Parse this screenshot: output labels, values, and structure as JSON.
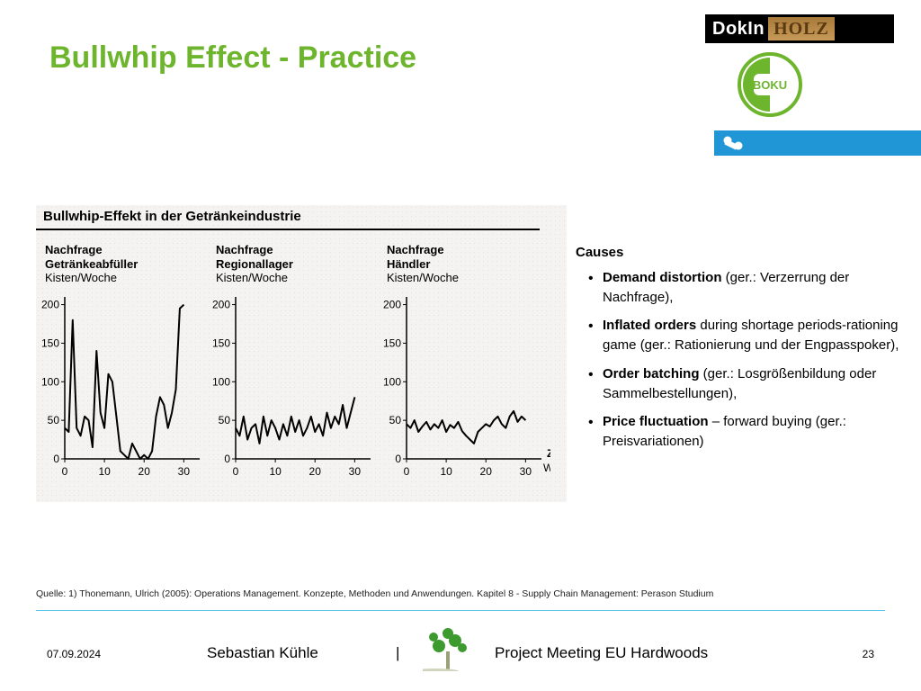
{
  "title": "Bullwhip Effect - Practice",
  "title_color": "#6eb52e",
  "logos": {
    "dokin_left": "DokIn",
    "dokin_right": "HOLZ",
    "boku_text": "BOKU",
    "boku_green": "#6eb52e"
  },
  "chart_panel": {
    "background": "#f4f3f1",
    "heading": "Bullwhip-Effekt in der Getränkeindustrie",
    "panels": [
      {
        "key": "abfueller",
        "title_bold": "Nachfrage\nGetränkeabfüller",
        "ylabel": "Kisten/Woche"
      },
      {
        "key": "regionallager",
        "title_bold": "Nachfrage\nRegionallager",
        "ylabel": "Kisten/Woche"
      },
      {
        "key": "haendler",
        "title_bold": "Nachfrage\nHändler",
        "ylabel": "Kisten/Woche"
      }
    ],
    "yticks": [
      0,
      50,
      100,
      150,
      200
    ],
    "xticks": [
      0,
      10,
      20,
      30
    ],
    "ylim": [
      0,
      210
    ],
    "xlim": [
      0,
      34
    ],
    "x_end_label_top": "Zeit",
    "x_end_label_bottom": "Wochen",
    "line_color": "#000000",
    "line_width": 2,
    "series": {
      "abfueller": [
        [
          0,
          40
        ],
        [
          1,
          35
        ],
        [
          2,
          180
        ],
        [
          3,
          40
        ],
        [
          4,
          30
        ],
        [
          5,
          55
        ],
        [
          6,
          50
        ],
        [
          7,
          15
        ],
        [
          8,
          140
        ],
        [
          9,
          60
        ],
        [
          10,
          40
        ],
        [
          11,
          110
        ],
        [
          12,
          100
        ],
        [
          13,
          55
        ],
        [
          14,
          10
        ],
        [
          15,
          5
        ],
        [
          16,
          0
        ],
        [
          17,
          20
        ],
        [
          18,
          10
        ],
        [
          19,
          0
        ],
        [
          20,
          5
        ],
        [
          21,
          0
        ],
        [
          22,
          10
        ],
        [
          23,
          55
        ],
        [
          24,
          80
        ],
        [
          25,
          70
        ],
        [
          26,
          40
        ],
        [
          27,
          60
        ],
        [
          28,
          90
        ],
        [
          29,
          195
        ],
        [
          30,
          200
        ]
      ],
      "regionallager": [
        [
          0,
          40
        ],
        [
          1,
          30
        ],
        [
          2,
          55
        ],
        [
          3,
          25
        ],
        [
          4,
          40
        ],
        [
          5,
          45
        ],
        [
          6,
          20
        ],
        [
          7,
          55
        ],
        [
          8,
          30
        ],
        [
          9,
          50
        ],
        [
          10,
          40
        ],
        [
          11,
          25
        ],
        [
          12,
          45
        ],
        [
          13,
          30
        ],
        [
          14,
          55
        ],
        [
          15,
          35
        ],
        [
          16,
          50
        ],
        [
          17,
          30
        ],
        [
          18,
          40
        ],
        [
          19,
          55
        ],
        [
          20,
          35
        ],
        [
          21,
          45
        ],
        [
          22,
          30
        ],
        [
          23,
          60
        ],
        [
          24,
          40
        ],
        [
          25,
          55
        ],
        [
          26,
          45
        ],
        [
          27,
          70
        ],
        [
          28,
          40
        ],
        [
          29,
          60
        ],
        [
          30,
          80
        ]
      ],
      "haendler": [
        [
          0,
          45
        ],
        [
          1,
          40
        ],
        [
          2,
          50
        ],
        [
          3,
          35
        ],
        [
          4,
          42
        ],
        [
          5,
          48
        ],
        [
          6,
          38
        ],
        [
          7,
          45
        ],
        [
          8,
          40
        ],
        [
          9,
          50
        ],
        [
          10,
          35
        ],
        [
          11,
          44
        ],
        [
          12,
          40
        ],
        [
          13,
          48
        ],
        [
          14,
          36
        ],
        [
          15,
          30
        ],
        [
          16,
          25
        ],
        [
          17,
          20
        ],
        [
          18,
          35
        ],
        [
          19,
          40
        ],
        [
          20,
          45
        ],
        [
          21,
          42
        ],
        [
          22,
          50
        ],
        [
          23,
          55
        ],
        [
          24,
          45
        ],
        [
          25,
          40
        ],
        [
          26,
          55
        ],
        [
          27,
          62
        ],
        [
          28,
          48
        ],
        [
          29,
          55
        ],
        [
          30,
          50
        ]
      ]
    }
  },
  "causes": {
    "heading": "Causes",
    "items": [
      {
        "bold": "Demand distortion",
        "rest": " (ger.: Verzerrung der Nachfrage),"
      },
      {
        "bold": "Inflated orders",
        "rest": " during shortage periods-rationing game (ger.: Rationierung und der Engpasspoker),"
      },
      {
        "bold": "Order batching",
        "rest": " (ger.: Losgrößenbildung oder Sammelbestellungen),"
      },
      {
        "bold": "Price fluctuation",
        "rest": " – forward buying (ger.: Preisvariationen)"
      }
    ]
  },
  "source": "Quelle: 1) Thonemann, Ulrich (2005): Operations Management. Konzepte, Methoden und Anwendungen. Kapitel 8 - Supply Chain Management: Perason Studium",
  "footer": {
    "date": "07.09.2024",
    "author": "Sebastian Kühle",
    "separator": "|",
    "project": "Project Meeting EU Hardwoods",
    "page": "23",
    "rule_color": "#59c3e8"
  }
}
